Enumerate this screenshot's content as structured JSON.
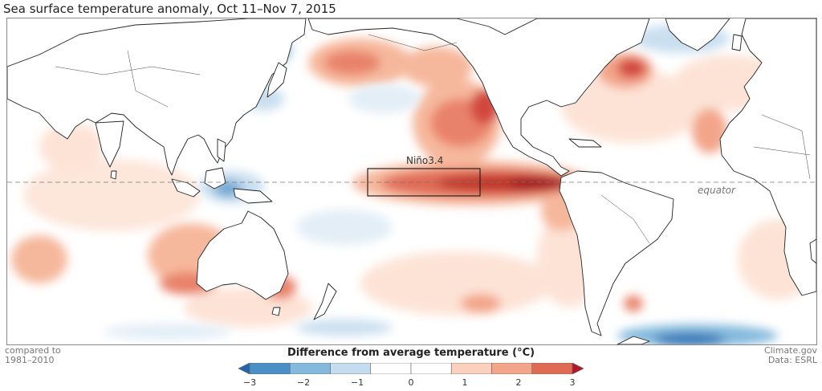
{
  "title": "Sea surface temperature anomaly, Oct 11–Nov 7, 2015",
  "map": {
    "nino_label": "Niño3.4",
    "equator_label": "equator"
  },
  "footer": {
    "left_line1": "compared to",
    "left_line2": "1981–2010",
    "right_line1": "Climate.gov",
    "right_line2": "Data: ESRL"
  },
  "legend": {
    "title": "Difference from average temperature (°C)",
    "ticks": [
      "−3",
      "−2",
      "−1",
      "0",
      "1",
      "2",
      "3"
    ],
    "colors": [
      "#2166ac",
      "#4a8fc6",
      "#84b9dd",
      "#c4ddee",
      "#ffffff",
      "#ffffff",
      "#fbd0bd",
      "#f3a58a",
      "#e06b55",
      "#b2182b"
    ]
  },
  "colors": {
    "warm_strong": "#b2182b",
    "warm_mid": "#e06b55",
    "warm_light": "#f6b89c",
    "warm_faint": "#fde3d6",
    "cool_light": "#c9dff0",
    "cool_mid": "#6fa6d2",
    "cool_strong": "#2166ac"
  }
}
